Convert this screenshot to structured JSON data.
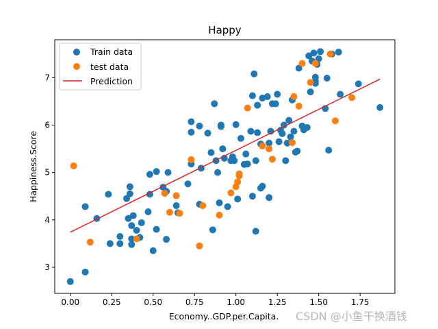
{
  "chart_data": {
    "type": "scatter",
    "title": "Happy",
    "xlabel": "Economy..GDP.per.Capita.",
    "ylabel": "Happiness.Score",
    "xlim": [
      -0.094,
      1.96
    ],
    "ylim": [
      2.45,
      7.8
    ],
    "xticks": [
      0.0,
      0.25,
      0.5,
      0.75,
      1.0,
      1.25,
      1.5,
      1.75
    ],
    "xtick_labels": [
      "0.00",
      "0.25",
      "0.50",
      "0.75",
      "1.00",
      "1.25",
      "1.50",
      "1.75"
    ],
    "yticks": [
      3,
      4,
      5,
      6,
      7
    ],
    "ytick_labels": [
      "3",
      "4",
      "5",
      "6",
      "7"
    ],
    "legend": {
      "position": "top-left",
      "entries": [
        "Train data",
        "test data",
        "Prediction"
      ]
    },
    "series": [
      {
        "name": "Train data",
        "kind": "scatter",
        "color": "#1f77b4",
        "points": [
          [
            0.0,
            2.7
          ],
          [
            0.09,
            2.9
          ],
          [
            0.09,
            4.28
          ],
          [
            0.16,
            4.03
          ],
          [
            0.23,
            4.54
          ],
          [
            0.24,
            3.5
          ],
          [
            0.3,
            3.5
          ],
          [
            0.3,
            3.65
          ],
          [
            0.34,
            4.45
          ],
          [
            0.35,
            4.03
          ],
          [
            0.36,
            4.7
          ],
          [
            0.36,
            4.55
          ],
          [
            0.37,
            3.88
          ],
          [
            0.37,
            3.6
          ],
          [
            0.37,
            3.48
          ],
          [
            0.38,
            4.09
          ],
          [
            0.4,
            3.78
          ],
          [
            0.42,
            3.63
          ],
          [
            0.43,
            3.94
          ],
          [
            0.47,
            4.17
          ],
          [
            0.48,
            4.96
          ],
          [
            0.48,
            4.54
          ],
          [
            0.5,
            3.35
          ],
          [
            0.52,
            3.8
          ],
          [
            0.52,
            5.02
          ],
          [
            0.56,
            4.69
          ],
          [
            0.58,
            3.59
          ],
          [
            0.58,
            4.6
          ],
          [
            0.59,
            5.0
          ],
          [
            0.64,
            4.3
          ],
          [
            0.65,
            4.15
          ],
          [
            0.71,
            4.76
          ],
          [
            0.73,
            5.18
          ],
          [
            0.73,
            5.85
          ],
          [
            0.73,
            6.07
          ],
          [
            0.78,
            5.98
          ],
          [
            0.78,
            4.33
          ],
          [
            0.79,
            5.09
          ],
          [
            0.83,
            5.83
          ],
          [
            0.85,
            5.42
          ],
          [
            0.86,
            3.79
          ],
          [
            0.87,
            6.45
          ],
          [
            0.88,
            5.25
          ],
          [
            0.89,
            5.0
          ],
          [
            0.9,
            4.36
          ],
          [
            0.91,
            6.0
          ],
          [
            0.91,
            5.97
          ],
          [
            0.92,
            5.5
          ],
          [
            0.93,
            5.3
          ],
          [
            0.95,
            4.28
          ],
          [
            0.97,
            5.25
          ],
          [
            0.98,
            5.33
          ],
          [
            0.99,
            5.25
          ],
          [
            1.0,
            6.01
          ],
          [
            1.01,
            4.44
          ],
          [
            1.03,
            5.72
          ],
          [
            1.05,
            5.17
          ],
          [
            1.06,
            5.39
          ],
          [
            1.07,
            5.18
          ],
          [
            1.09,
            5.87
          ],
          [
            1.1,
            6.62
          ],
          [
            1.1,
            4.5
          ],
          [
            1.11,
            7.08
          ],
          [
            1.12,
            5.25
          ],
          [
            1.12,
            3.76
          ],
          [
            1.13,
            6.42
          ],
          [
            1.13,
            5.84
          ],
          [
            1.15,
            5.6
          ],
          [
            1.15,
            4.67
          ],
          [
            1.16,
            4.71
          ],
          [
            1.16,
            6.57
          ],
          [
            1.19,
            6.6
          ],
          [
            1.2,
            5.62
          ],
          [
            1.2,
            4.47
          ],
          [
            1.21,
            5.87
          ],
          [
            1.22,
            6.45
          ],
          [
            1.24,
            6.45
          ],
          [
            1.25,
            6.65
          ],
          [
            1.26,
            5.65
          ],
          [
            1.27,
            5.89
          ],
          [
            1.28,
            5.82
          ],
          [
            1.29,
            6.0
          ],
          [
            1.3,
            5.25
          ],
          [
            1.31,
            5.62
          ],
          [
            1.32,
            6.1
          ],
          [
            1.33,
            5.75
          ],
          [
            1.34,
            6.53
          ],
          [
            1.35,
            5.87
          ],
          [
            1.36,
            5.43
          ],
          [
            1.37,
            5.45
          ],
          [
            1.38,
            7.2
          ],
          [
            1.4,
            5.98
          ],
          [
            1.41,
            5.9
          ],
          [
            1.43,
            5.95
          ],
          [
            1.44,
            7.46
          ],
          [
            1.45,
            6.7
          ],
          [
            1.46,
            7.35
          ],
          [
            1.47,
            7.52
          ],
          [
            1.48,
            6.88
          ],
          [
            1.48,
            6.93
          ],
          [
            1.48,
            7.01
          ],
          [
            1.49,
            7.28
          ],
          [
            1.5,
            7.4
          ],
          [
            1.51,
            7.55
          ],
          [
            1.54,
            6.35
          ],
          [
            1.55,
            6.99
          ],
          [
            1.56,
            5.47
          ],
          [
            1.58,
            7.5
          ],
          [
            1.62,
            7.54
          ],
          [
            1.63,
            6.65
          ],
          [
            1.74,
            6.87
          ],
          [
            1.87,
            6.37
          ]
        ]
      },
      {
        "name": "test data",
        "kind": "scatter",
        "color": "#ff7f0e",
        "points": [
          [
            0.02,
            5.14
          ],
          [
            0.12,
            3.53
          ],
          [
            0.4,
            3.6
          ],
          [
            0.6,
            4.16
          ],
          [
            0.57,
            4.56
          ],
          [
            0.64,
            4.51
          ],
          [
            0.66,
            4.14
          ],
          [
            0.73,
            5.27
          ],
          [
            0.78,
            3.45
          ],
          [
            0.8,
            4.3
          ],
          [
            0.9,
            4.1
          ],
          [
            0.97,
            4.57
          ],
          [
            1.0,
            4.7
          ],
          [
            1.01,
            4.8
          ],
          [
            1.02,
            4.93
          ],
          [
            1.02,
            4.97
          ],
          [
            1.07,
            6.36
          ],
          [
            1.16,
            5.56
          ],
          [
            1.2,
            5.5
          ],
          [
            1.22,
            5.28
          ],
          [
            1.34,
            5.63
          ],
          [
            1.35,
            6.6
          ],
          [
            1.38,
            6.4
          ],
          [
            1.4,
            7.3
          ],
          [
            1.45,
            6.9
          ],
          [
            1.48,
            7.3
          ],
          [
            1.57,
            7.5
          ],
          [
            1.6,
            6.09
          ],
          [
            1.7,
            6.58
          ]
        ]
      },
      {
        "name": "Prediction",
        "kind": "line",
        "color": "#d62728",
        "x": [
          0.0,
          1.87
        ],
        "y": [
          3.74,
          6.97
        ]
      }
    ]
  },
  "watermark": "CSDN @小鱼干换酒钱"
}
